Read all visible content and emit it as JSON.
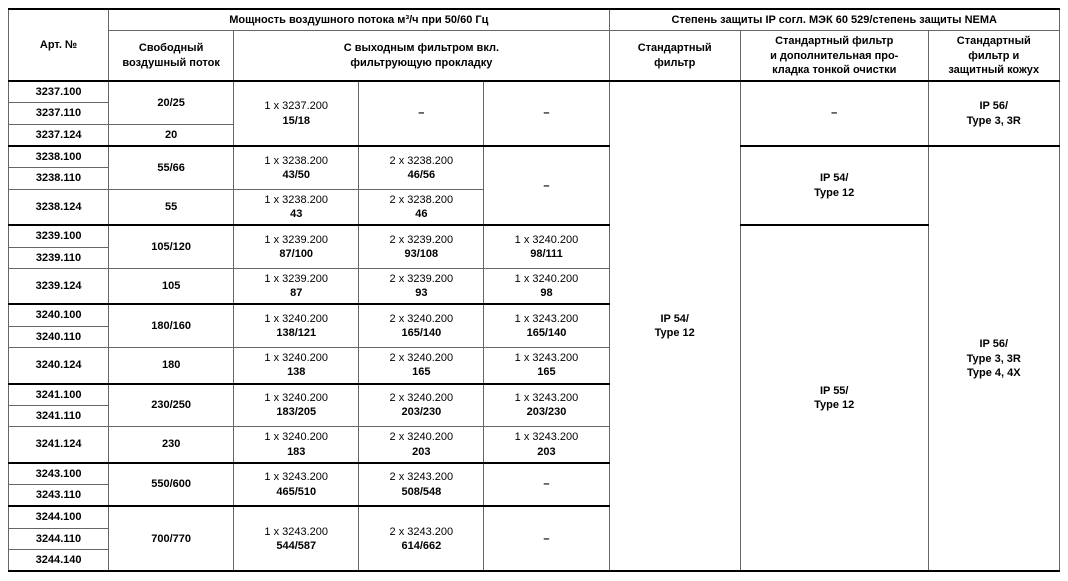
{
  "headers": {
    "art": "Арт. №",
    "airflow": "Мощность воздушного потока м³/ч при 50/60 Гц",
    "ip_group": "Степень защиты IP согл. МЭК 60 529/степень защиты NEMA",
    "free_flow": "Свободный\nвоздушный поток",
    "with_filter": "С выходным фильтром вкл.\nфильтрующую прокладку",
    "std_filter": "Стандартный\nфильтр",
    "std_filter_fine": "Стандартный фильтр\nи дополнительная про-\nкладка тонкой очистки",
    "std_filter_cover": "Стандартный\nфильтр и\nзащитный кожух"
  },
  "groups": [
    {
      "arts": [
        "3237.100",
        "3237.110",
        "3237.124"
      ],
      "free": [
        "20/25",
        "20"
      ],
      "free_rows": [
        2,
        1
      ],
      "filters": [
        {
          "rows": 3,
          "top": "1 x 3237.200",
          "bot": "15/18"
        },
        {
          "rows": 3,
          "top": "",
          "bot": "–"
        },
        {
          "rows": 3,
          "top": "",
          "bot": "–"
        }
      ]
    },
    {
      "arts": [
        "3238.100",
        "3238.110",
        "3238.124"
      ],
      "free": [
        "55/66",
        "55"
      ],
      "free_rows": [
        2,
        1
      ],
      "filters": [
        {
          "rows": 2,
          "top": "1 x 3238.200",
          "bot": "43/50"
        },
        {
          "rows": 2,
          "top": "2 x 3238.200",
          "bot": "46/56"
        },
        {
          "rows": 3,
          "top": "",
          "bot": "–"
        }
      ],
      "filters_row3": [
        {
          "top": "1 x 3238.200",
          "bot": "43"
        },
        {
          "top": "2 x 3238.200",
          "bot": "46"
        }
      ]
    },
    {
      "arts": [
        "3239.100",
        "3239.110",
        "3239.124"
      ],
      "free": [
        "105/120",
        "105"
      ],
      "free_rows": [
        2,
        1
      ],
      "filters": [
        {
          "rows": 2,
          "top": "1 x 3239.200",
          "bot": "87/100"
        },
        {
          "rows": 2,
          "top": "2 x 3239.200",
          "bot": "93/108"
        },
        {
          "rows": 2,
          "top": "1 x 3240.200",
          "bot": "98/111"
        }
      ],
      "filters_row3": [
        {
          "top": "1 x 3239.200",
          "bot": "87"
        },
        {
          "top": "2 x 3239.200",
          "bot": "93"
        },
        {
          "top": "1 x 3240.200",
          "bot": "98"
        }
      ]
    },
    {
      "arts": [
        "3240.100",
        "3240.110",
        "3240.124"
      ],
      "free": [
        "180/160",
        "180"
      ],
      "free_rows": [
        2,
        1
      ],
      "filters": [
        {
          "rows": 2,
          "top": "1 x 3240.200",
          "bot": "138/121"
        },
        {
          "rows": 2,
          "top": "2 x 3240.200",
          "bot": "165/140"
        },
        {
          "rows": 2,
          "top": "1 x 3243.200",
          "bot": "165/140"
        }
      ],
      "filters_row3": [
        {
          "top": "1 x 3240.200",
          "bot": "138"
        },
        {
          "top": "2 x 3240.200",
          "bot": "165"
        },
        {
          "top": "1 x 3243.200",
          "bot": "165"
        }
      ]
    },
    {
      "arts": [
        "3241.100",
        "3241.110",
        "3241.124"
      ],
      "free": [
        "230/250",
        "230"
      ],
      "free_rows": [
        2,
        1
      ],
      "filters": [
        {
          "rows": 2,
          "top": "1 x 3240.200",
          "bot": "183/205"
        },
        {
          "rows": 2,
          "top": "2 x 3240.200",
          "bot": "203/230"
        },
        {
          "rows": 2,
          "top": "1 x 3243.200",
          "bot": "203/230"
        }
      ],
      "filters_row3": [
        {
          "top": "1 x 3240.200",
          "bot": "183"
        },
        {
          "top": "2 x 3240.200",
          "bot": "203"
        },
        {
          "top": "1 x 3243.200",
          "bot": "203"
        }
      ]
    },
    {
      "arts": [
        "3243.100",
        "3243.110"
      ],
      "free": [
        "550/600"
      ],
      "free_rows": [
        2
      ],
      "filters": [
        {
          "rows": 2,
          "top": "1 x 3243.200",
          "bot": "465/510"
        },
        {
          "rows": 2,
          "top": "2 x 3243.200",
          "bot": "508/548"
        },
        {
          "rows": 2,
          "top": "",
          "bot": "–"
        }
      ]
    },
    {
      "arts": [
        "3244.100",
        "3244.110",
        "3244.140"
      ],
      "free": [
        "700/770"
      ],
      "free_rows": [
        3
      ],
      "filters": [
        {
          "rows": 3,
          "top": "1 x 3243.200",
          "bot": "544/587"
        },
        {
          "rows": 3,
          "top": "2 x 3243.200",
          "bot": "614/662"
        },
        {
          "rows": 3,
          "top": "",
          "bot": "–"
        }
      ]
    }
  ],
  "ip": {
    "std_filter": "IP 54/\nType 12",
    "fine1": "–",
    "fine2": "IP 54/\nType 12",
    "fine3": "IP 55/\nType 12",
    "cover1": "IP 56/\nType 3, 3R",
    "cover2": "IP 56/\nType 3, 3R\nType 4, 4X"
  },
  "total_rows": 20
}
